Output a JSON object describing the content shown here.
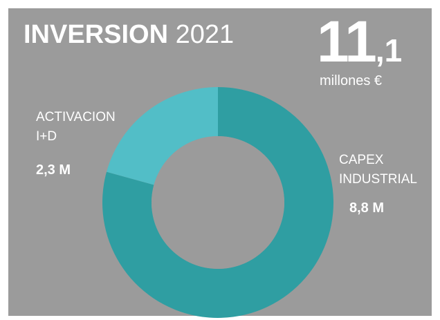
{
  "title": {
    "bold": "INVERSION",
    "year": "2021"
  },
  "total": {
    "int": "11",
    "dec": ",1",
    "unit": "millones €"
  },
  "colors": {
    "panel": "#9b9b9b",
    "capex": "#2f9ea2",
    "activacion": "#52bec7",
    "text": "#ffffff"
  },
  "chart_data": {
    "type": "pie",
    "variant": "donut",
    "categories": [
      "ACTIVACION I+D",
      "CAPEX INDUSTRIAL"
    ],
    "values": [
      2.3,
      8.8
    ],
    "series": [
      {
        "label_lines": [
          "ACTIVACION",
          "I+D"
        ],
        "value_label": "2,3 M",
        "value": 2.3,
        "color": "#52bec7"
      },
      {
        "label_lines": [
          "CAPEX",
          "INDUSTRIAL"
        ],
        "value_label": "8,8 M",
        "value": 8.8,
        "color": "#2f9ea2"
      }
    ]
  }
}
